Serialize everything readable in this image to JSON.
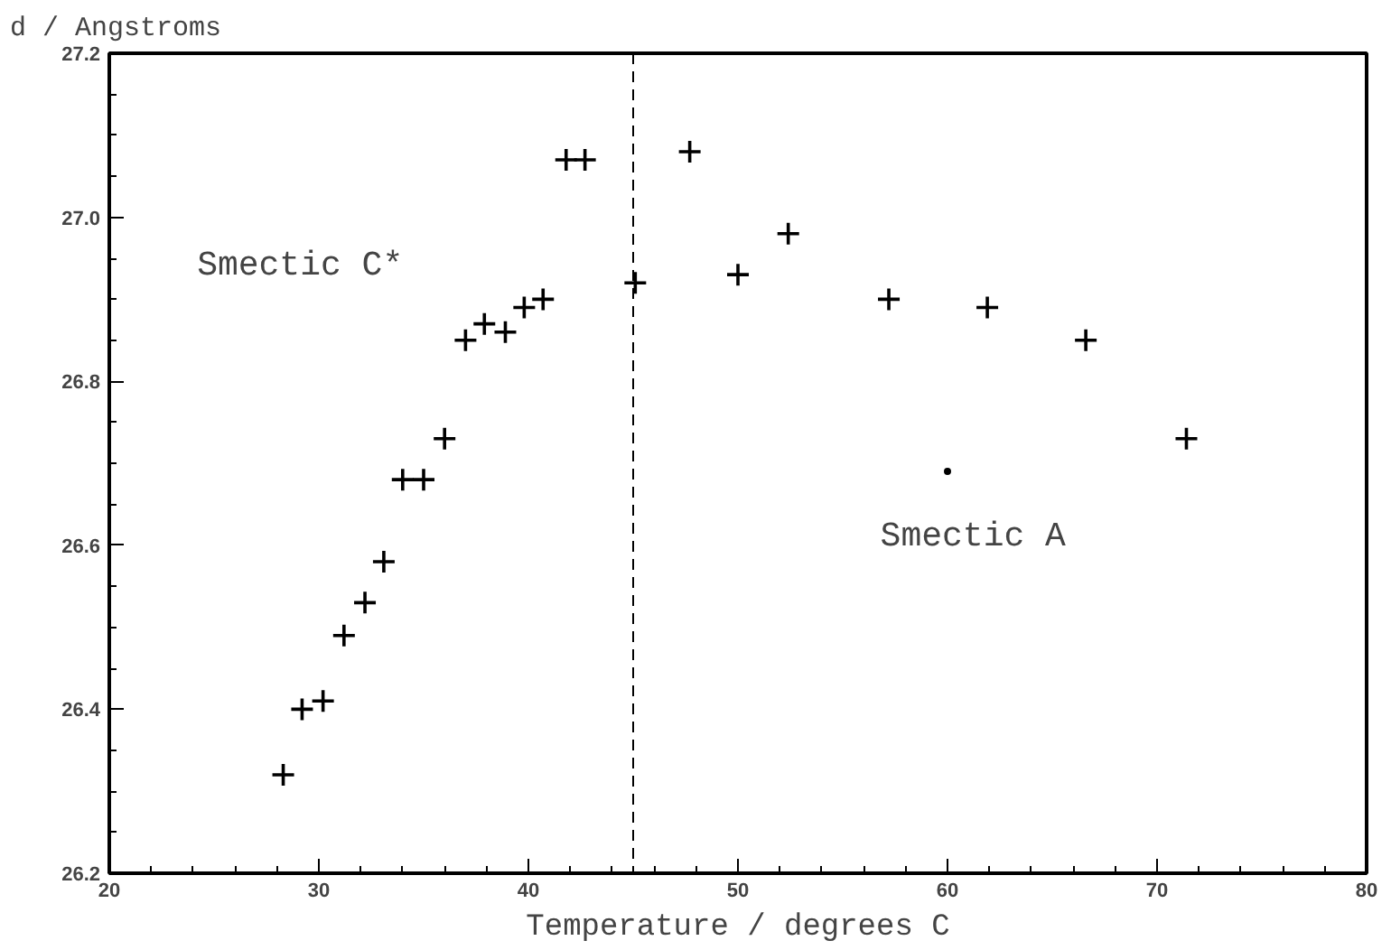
{
  "chart_data": {
    "type": "scatter",
    "xlabel": "Temperature / degrees C",
    "ylabel": "d / Angstroms",
    "xlim": [
      20,
      80
    ],
    "xticks": [
      20,
      30,
      40,
      50,
      60,
      70,
      80
    ],
    "ylim": [
      26.2,
      27.2
    ],
    "yticks": [
      26.2,
      26.4,
      26.6,
      26.8,
      {
        "value": 27.0,
        "label": "27.0"
      },
      27.2
    ],
    "marker": "cross",
    "grid": false,
    "series": [
      {
        "color": "#000000",
        "x": [
          28.3,
          29.2,
          30.2,
          31.2,
          32.2,
          33.1,
          34.0,
          35.0,
          36.0,
          37.0,
          37.9,
          38.9,
          39.8,
          40.7,
          41.8,
          42.7,
          45.1,
          47.7,
          50.0,
          52.4,
          57.2,
          61.9,
          66.6,
          71.4
        ],
        "values": [
          26.32,
          26.4,
          26.41,
          26.49,
          26.53,
          26.58,
          26.68,
          26.68,
          26.73,
          26.85,
          26.87,
          26.86,
          26.89,
          26.9,
          27.07,
          27.07,
          26.92,
          27.08,
          26.93,
          26.98,
          26.9,
          26.89,
          26.85,
          26.73
        ]
      },
      {
        "color": "#000000",
        "marker": "circle",
        "x": [
          60.0
        ],
        "values": [
          26.69
        ]
      }
    ],
    "ref_lines": [
      {
        "axis": "x",
        "value": 45,
        "color": "#000000",
        "line_style": "dashed"
      }
    ],
    "annotations": [
      "Smectic C*",
      "Smectic A"
    ]
  }
}
